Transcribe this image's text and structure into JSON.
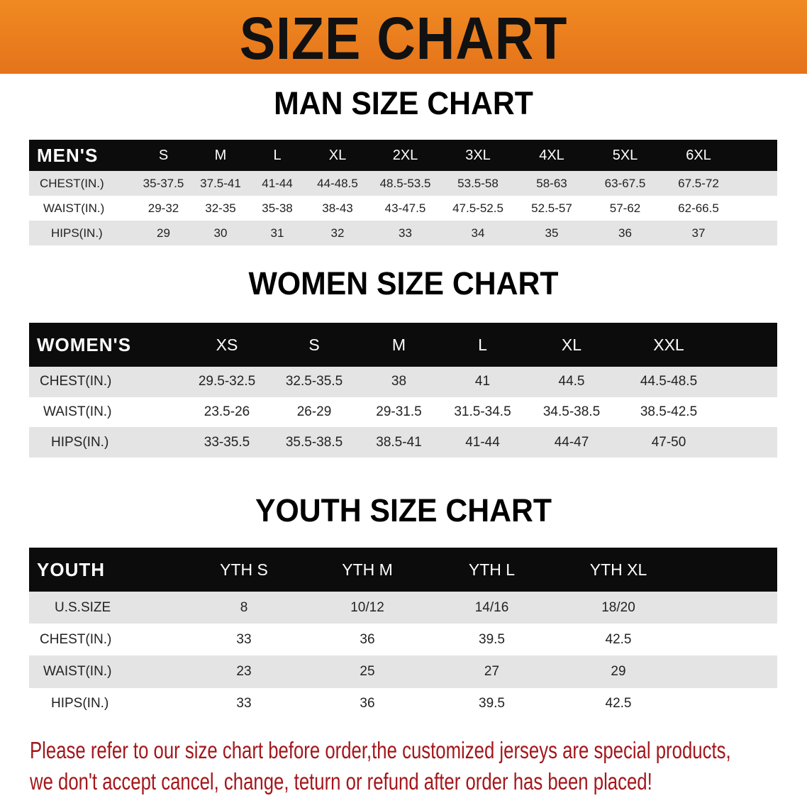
{
  "banner_title": "SIZE CHART",
  "men": {
    "title": "MAN SIZE CHART",
    "header": [
      "MEN'S",
      "S",
      "M",
      "L",
      "XL",
      "2XL",
      "3XL",
      "4XL",
      "5XL",
      "6XL"
    ],
    "rows": [
      [
        "CHEST(IN.)",
        "35-37.5",
        "37.5-41",
        "41-44",
        "44-48.5",
        "48.5-53.5",
        "53.5-58",
        "58-63",
        "63-67.5",
        "67.5-72"
      ],
      [
        "WAIST(IN.)",
        "29-32",
        "32-35",
        "35-38",
        "38-43",
        "43-47.5",
        "47.5-52.5",
        "52.5-57",
        "57-62",
        "62-66.5"
      ],
      [
        "HIPS(IN.)",
        "29",
        "30",
        "31",
        "32",
        "33",
        "34",
        "35",
        "36",
        "37"
      ]
    ]
  },
  "women": {
    "title": "WOMEN SIZE CHART",
    "header": [
      "WOMEN'S",
      "XS",
      "S",
      "M",
      "L",
      "XL",
      "XXL"
    ],
    "rows": [
      [
        "CHEST(IN.)",
        "29.5-32.5",
        "32.5-35.5",
        "38",
        "41",
        "44.5",
        "44.5-48.5"
      ],
      [
        "WAIST(IN.)",
        "23.5-26",
        "26-29",
        "29-31.5",
        "31.5-34.5",
        "34.5-38.5",
        "38.5-42.5"
      ],
      [
        "HIPS(IN.)",
        "33-35.5",
        "35.5-38.5",
        "38.5-41",
        "41-44",
        "44-47",
        "47-50"
      ]
    ]
  },
  "youth": {
    "title": "YOUTH SIZE CHART",
    "header": [
      "YOUTH",
      "YTH S",
      "YTH M",
      "YTH L",
      "YTH XL"
    ],
    "rows": [
      [
        "U.S.SIZE",
        "8",
        "10/12",
        "14/16",
        "18/20"
      ],
      [
        "CHEST(IN.)",
        "33",
        "36",
        "39.5",
        "42.5"
      ],
      [
        "WAIST(IN.)",
        "23",
        "25",
        "27",
        "29"
      ],
      [
        "HIPS(IN.)",
        "33",
        "36",
        "39.5",
        "42.5"
      ]
    ]
  },
  "notice": {
    "line1": "Please refer to our size chart before order,the customized jerseys are special products,",
    "line2": "we don't accept cancel, change, teturn or refund after order has been placed!"
  },
  "colors": {
    "banner": "#e97b1d",
    "header_bg": "#0c0c0c",
    "row_gray": "#e4e4e4",
    "notice": "#a3171b"
  }
}
